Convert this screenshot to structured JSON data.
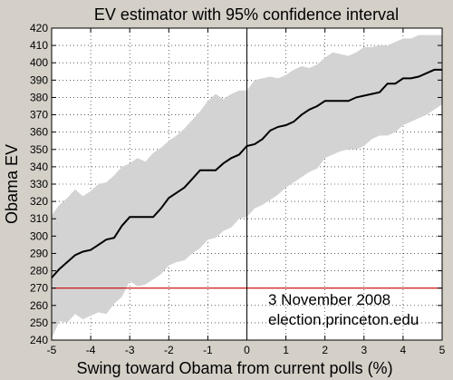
{
  "colors": {
    "background": "#d4d0c8",
    "plot_background": "#ffffff",
    "band_fill": "#d3d3d3",
    "median_line": "#000000",
    "threshold_line": "#cc0000",
    "grid": "#000000"
  },
  "chart_data": {
    "type": "area",
    "title": "EV estimator with 95% confidence interval",
    "xlabel": "Swing toward Obama from current polls (%)",
    "ylabel": "Obama EV",
    "xlim": [
      -5,
      5
    ],
    "ylim": [
      240,
      420
    ],
    "xticks": [
      -5,
      -4,
      -3,
      -2,
      -1,
      0,
      1,
      2,
      3,
      4,
      5
    ],
    "yticks": [
      240,
      250,
      260,
      270,
      280,
      290,
      300,
      310,
      320,
      330,
      340,
      350,
      360,
      370,
      380,
      390,
      400,
      410,
      420
    ],
    "grid": true,
    "grid_style": "dotted",
    "threshold": 270,
    "vline_x": 0,
    "annotations": [
      "3 November 2008",
      "election.princeton.edu"
    ],
    "series": [
      {
        "role": "median",
        "x": [
          -5.0,
          -4.8,
          -4.6,
          -4.4,
          -4.2,
          -4.0,
          -3.8,
          -3.6,
          -3.4,
          -3.2,
          -3.0,
          -2.8,
          -2.6,
          -2.4,
          -2.2,
          -2.0,
          -1.8,
          -1.6,
          -1.4,
          -1.2,
          -1.0,
          -0.8,
          -0.6,
          -0.4,
          -0.2,
          0.0,
          0.2,
          0.4,
          0.6,
          0.8,
          1.0,
          1.2,
          1.4,
          1.6,
          1.8,
          2.0,
          2.2,
          2.4,
          2.6,
          2.8,
          3.0,
          3.2,
          3.4,
          3.6,
          3.8,
          4.0,
          4.2,
          4.4,
          4.6,
          4.8,
          5.0
        ],
        "values": [
          276,
          281,
          285,
          289,
          291,
          292,
          295,
          298,
          299,
          306,
          311,
          311,
          311,
          311,
          316,
          322,
          325,
          328,
          333,
          338,
          338,
          338,
          342,
          345,
          347,
          352,
          353,
          356,
          361,
          363,
          364,
          366,
          370,
          373,
          375,
          378,
          378,
          378,
          378,
          380,
          381,
          382,
          383,
          388,
          388,
          391,
          391,
          392,
          394,
          396,
          396
        ]
      },
      {
        "role": "ci_upper",
        "x": [
          -5.0,
          -4.8,
          -4.6,
          -4.4,
          -4.2,
          -4.0,
          -3.8,
          -3.6,
          -3.4,
          -3.2,
          -3.0,
          -2.8,
          -2.6,
          -2.4,
          -2.2,
          -2.0,
          -1.8,
          -1.6,
          -1.4,
          -1.2,
          -1.0,
          -0.8,
          -0.6,
          -0.4,
          -0.2,
          0.0,
          0.2,
          0.4,
          0.6,
          0.8,
          1.0,
          1.2,
          1.4,
          1.6,
          1.8,
          2.0,
          2.2,
          2.4,
          2.6,
          2.8,
          3.0,
          3.2,
          3.4,
          3.6,
          3.8,
          4.0,
          4.2,
          4.4,
          4.6,
          4.8,
          5.0
        ],
        "values": [
          312,
          318,
          322,
          327,
          323,
          326,
          330,
          331,
          335,
          340,
          342,
          345,
          343,
          348,
          351,
          355,
          358,
          362,
          367,
          372,
          378,
          382,
          379,
          382,
          384,
          384,
          390,
          391,
          392,
          391,
          393,
          396,
          398,
          397,
          399,
          403,
          406,
          405,
          404,
          406,
          409,
          409,
          410,
          410,
          412,
          414,
          414,
          416,
          416,
          416,
          416
        ]
      },
      {
        "role": "ci_lower",
        "x": [
          -5.0,
          -4.8,
          -4.6,
          -4.4,
          -4.2,
          -4.0,
          -3.8,
          -3.6,
          -3.4,
          -3.2,
          -3.0,
          -2.8,
          -2.6,
          -2.4,
          -2.2,
          -2.0,
          -1.8,
          -1.6,
          -1.4,
          -1.2,
          -1.0,
          -0.8,
          -0.6,
          -0.4,
          -0.2,
          0.0,
          0.2,
          0.4,
          0.6,
          0.8,
          1.0,
          1.2,
          1.4,
          1.6,
          1.8,
          2.0,
          2.2,
          2.4,
          2.6,
          2.8,
          3.0,
          3.2,
          3.4,
          3.6,
          3.8,
          4.0,
          4.2,
          4.4,
          4.6,
          4.8,
          5.0
        ],
        "values": [
          241,
          251,
          250,
          255,
          252,
          254,
          256,
          255,
          261,
          265,
          274,
          271,
          272,
          275,
          278,
          283,
          285,
          286,
          290,
          293,
          298,
          299,
          303,
          305,
          310,
          311,
          316,
          318,
          321,
          324,
          328,
          331,
          334,
          337,
          339,
          345,
          347,
          349,
          350,
          350,
          352,
          356,
          358,
          358,
          360,
          364,
          366,
          368,
          370,
          373,
          376
        ]
      }
    ]
  }
}
